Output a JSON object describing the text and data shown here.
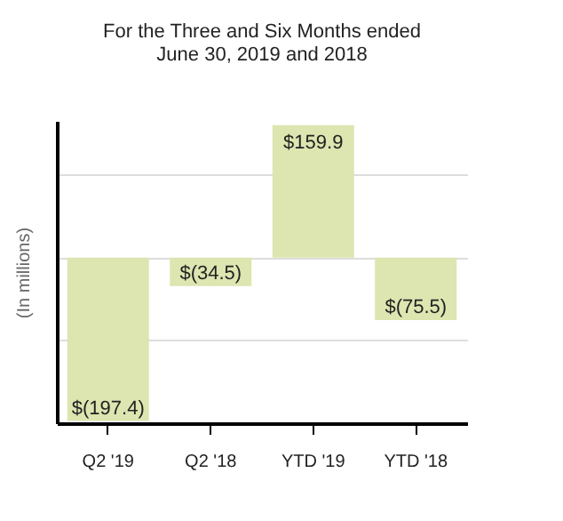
{
  "chart_data": {
    "type": "bar",
    "title": "For the Three and Six Months ended\nJune 30, 2019 and 2018",
    "ylabel": "(In millions)",
    "categories": [
      "Q2 '19",
      "Q2 '18",
      "YTD '19",
      "YTD '18"
    ],
    "values": [
      -197.4,
      -34.5,
      159.9,
      -75.5
    ],
    "value_labels": [
      "$(197.4)",
      "$(34.5)",
      "$159.9",
      "$(75.5)"
    ],
    "color": "#dde5b0",
    "ylim": [
      -200,
      165
    ],
    "yticks": [
      {
        "value": -100,
        "label": null
      },
      {
        "value": 0,
        "label": null
      },
      {
        "value": 100,
        "label": null
      }
    ],
    "grid": "y",
    "tick_labels": "x"
  }
}
